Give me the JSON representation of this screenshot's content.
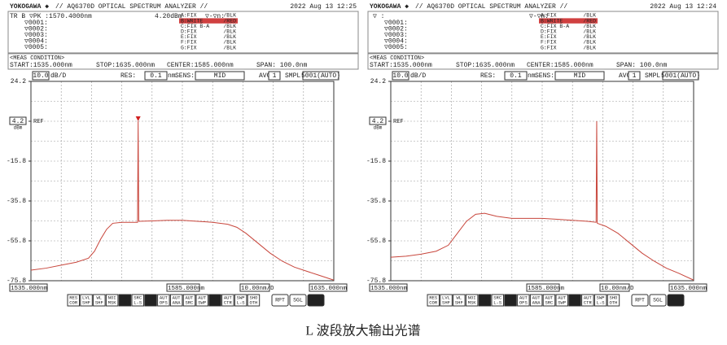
{
  "panels": [
    {
      "brand": "YOKOGAWA ◆",
      "model": "// AQ6370D OPTICAL SPECTRUM ANALYZER //",
      "datetime": "2022 Aug 13 12:25",
      "marker_head": [
        "TR B ▽PK :1570.4000nm",
        "4.20dBm",
        "▽-▽n:"
      ],
      "marker_rows": [
        "▽0001:",
        "▽0002:",
        "▽0003:",
        "▽0004:",
        "▽0005:"
      ],
      "traces": [
        {
          "label": "A:FIX",
          "mode": "/BLK",
          "color": "#b04aa0"
        },
        {
          "label": "B:WRITE",
          "mode": "/RED",
          "color": "#ffffff",
          "active": true
        },
        {
          "label": "C:FIX B-A",
          "mode": "/BLK",
          "color": "#3a9a3a"
        },
        {
          "label": "D:FIX",
          "mode": "/BLK",
          "color": "#3a6ac8"
        },
        {
          "label": "E:FIX",
          "mode": "/BLK",
          "color": "#c8a030"
        },
        {
          "label": "F:FIX",
          "mode": "/BLK",
          "color": "#c04040"
        },
        {
          "label": "G:FIX",
          "mode": "/BLK",
          "color": "#40a0a0"
        }
      ],
      "meas": {
        "title": "<MEAS CONDITION>",
        "start": "START:1535.000nm",
        "stop": "STOP:1635.000nm",
        "center": "CENTER:1585.000nm",
        "span": "SPAN: 100.0nm"
      },
      "settings": [
        {
          "value": "10.0",
          "unit": "dB/D"
        },
        {
          "label": "RES:",
          "value": "0.1",
          "unit": "nm"
        },
        {
          "label": "SENS:",
          "value": "MID"
        },
        {
          "label": "AVG:",
          "value": "1"
        },
        {
          "label": "SMPL:",
          "value": "5001(AUTO)"
        }
      ],
      "ref_unit": "dBm",
      "ref_label": "REF",
      "bottom": {
        "start": "1535.000nm",
        "center": "1585.000nm",
        "div": "10.00nm/D",
        "stop": "1635.000nm"
      }
    },
    {
      "brand": "YOKOGAWA ◆",
      "model": "// AQ6370D OPTICAL SPECTRUM ANALYZER //",
      "datetime": "2022 Aug 13 12:24",
      "marker_head": [
        "▽   :",
        "▽-▽n:"
      ],
      "marker_rows": [
        "▽0001:",
        "▽0002:",
        "▽0003:",
        "▽0004:",
        "▽0005:"
      ],
      "traces": [
        {
          "label": "A:FIX",
          "mode": "/BLK",
          "color": "#b04aa0"
        },
        {
          "label": "B:WRITE",
          "mode": "/RED",
          "color": "#ffffff",
          "active": true
        },
        {
          "label": "C:FIX B-A",
          "mode": "/BLK",
          "color": "#3a9a3a"
        },
        {
          "label": "D:FIX",
          "mode": "/BLK",
          "color": "#3a6ac8"
        },
        {
          "label": "E:FIX",
          "mode": "/BLK",
          "color": "#c8a030"
        },
        {
          "label": "F:FIX",
          "mode": "/BLK",
          "color": "#c04040"
        },
        {
          "label": "G:FIX",
          "mode": "/BLK",
          "color": "#40a0a0"
        }
      ],
      "meas": {
        "title": "<MEAS CONDITION>",
        "start": "START:1535.000nm",
        "stop": "STOP:1635.000nm",
        "center": "CENTER:1585.000nm",
        "span": "SPAN: 100.0nm"
      },
      "settings": [
        {
          "value": "10.0",
          "unit": "dB/D"
        },
        {
          "label": "RES:",
          "value": "0.1",
          "unit": "nm"
        },
        {
          "label": "SENS:",
          "value": "MID"
        },
        {
          "label": "AVG:",
          "value": "1"
        },
        {
          "label": "SMPL:",
          "value": "5001(AUTO)"
        }
      ],
      "ref_unit": "dBm",
      "ref_label": "REF",
      "bottom": {
        "start": "1535.000nm",
        "center": "1585.000nm",
        "div": "10.00nm/D",
        "stop": "1635.000nm"
      }
    }
  ],
  "softkeys": [
    [
      "RES",
      "COR"
    ],
    [
      "LVL",
      "SHF"
    ],
    [
      "WL",
      "SHF"
    ],
    [
      "NOI",
      "MSK"
    ],
    [
      "SRC",
      "COR"
    ],
    [
      "SRC",
      "L-S"
    ],
    [
      "VAC",
      "WL"
    ],
    [
      "AUT",
      "OFS"
    ],
    [
      "AUT",
      "ANA"
    ],
    [
      "AUT",
      "SRC"
    ],
    [
      "AUT",
      "SWP"
    ],
    [
      "AUT",
      "REF"
    ],
    [
      "AUT",
      "CTR"
    ],
    [
      "SWP",
      "L-S"
    ],
    [
      "SHO",
      "OTH"
    ]
  ],
  "softkeys_active": [
    4,
    6,
    11
  ],
  "runkeys": [
    "RPT",
    "SGL",
    "STP"
  ],
  "caption": "L 波段放大输出光谱",
  "chart_data": [
    {
      "type": "line",
      "color": "#c8463c",
      "xlim": [
        1535,
        1635
      ],
      "ylim": [
        -75.8,
        24.2
      ],
      "yticks": [
        24.2,
        4.2,
        -15.8,
        -35.8,
        -55.8,
        -75.8
      ],
      "grid": true,
      "x": [
        1535,
        1540,
        1545,
        1550,
        1554,
        1556,
        1558,
        1560,
        1562,
        1565,
        1570.2,
        1570.4,
        1570.6,
        1575,
        1580,
        1585,
        1590,
        1595,
        1600,
        1603,
        1606,
        1610,
        1614,
        1618,
        1622,
        1626,
        1630,
        1635
      ],
      "values": [
        -70.5,
        -69.5,
        -68,
        -66.5,
        -64.5,
        -61,
        -55,
        -50,
        -47,
        -46.5,
        -46.5,
        4.2,
        -46,
        -45.8,
        -45.5,
        -45.5,
        -46,
        -46.5,
        -47.5,
        -49,
        -52,
        -57,
        -62,
        -66,
        -69,
        -71,
        -73,
        -75.5
      ]
    },
    {
      "type": "line",
      "color": "#c8463c",
      "xlim": [
        1535,
        1635
      ],
      "ylim": [
        -75.8,
        24.2
      ],
      "yticks": [
        24.2,
        4.2,
        -15.8,
        -35.8,
        -55.8,
        -75.8
      ],
      "grid": true,
      "x": [
        1535,
        1540,
        1545,
        1550,
        1554,
        1557,
        1560,
        1563,
        1566,
        1570,
        1575,
        1580,
        1585,
        1590,
        1595,
        1600,
        1602.8,
        1603,
        1603.2,
        1606,
        1610,
        1614,
        1618,
        1622,
        1626,
        1630,
        1635
      ],
      "values": [
        -64,
        -63.5,
        -62.5,
        -61,
        -58,
        -52,
        -46,
        -42.5,
        -42,
        -43.5,
        -44.5,
        -44.5,
        -44.5,
        -45,
        -45.5,
        -46,
        -46.5,
        4.2,
        -47,
        -48.5,
        -52,
        -57,
        -62,
        -66,
        -69.5,
        -72,
        -75.5
      ]
    }
  ]
}
